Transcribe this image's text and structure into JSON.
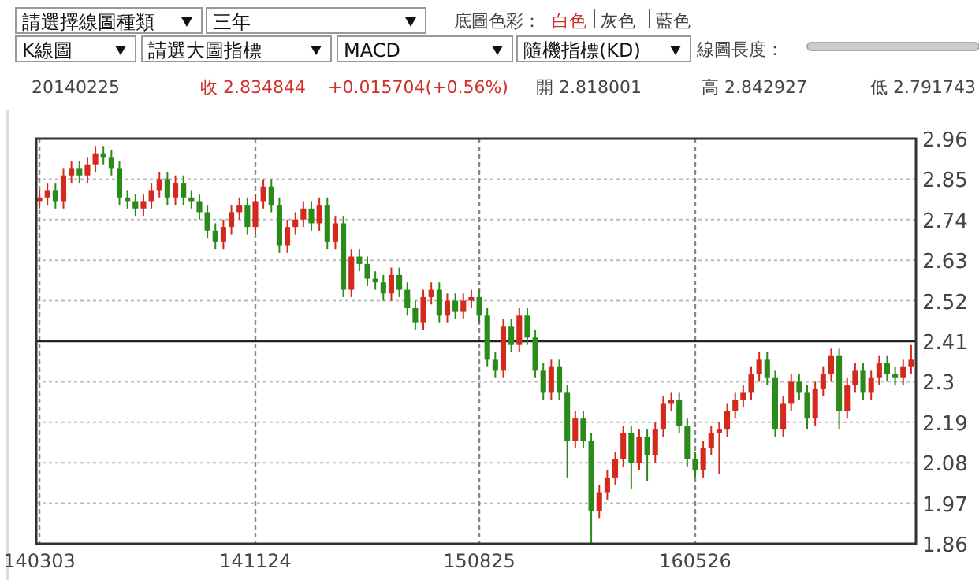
{
  "chart_data": {
    "type": "candlestick",
    "annotations": [
      "請選擇線圖種類",
      "三年",
      "底圖色彩：",
      "白色",
      "灰色",
      "藍色",
      "K線圖",
      "請選大圖指標",
      "MACD",
      "隨機指標(KD)",
      "線圖長度：",
      "20140225",
      "收 2.834844",
      "+0.015704(+0.56%)",
      "開 2.818001",
      "高 2.842927",
      "低 2.791743"
    ],
    "categories": [
      "140303",
      null,
      null,
      null,
      null,
      null,
      null,
      null,
      null,
      null,
      null,
      null,
      null,
      null,
      null,
      null,
      null,
      null,
      null,
      null,
      null,
      null,
      null,
      null,
      null,
      null,
      null,
      "141124",
      null,
      null,
      null,
      null,
      null,
      null,
      null,
      null,
      null,
      null,
      null,
      null,
      null,
      null,
      null,
      null,
      null,
      null,
      null,
      null,
      null,
      null,
      null,
      null,
      null,
      null,
      null,
      "150825",
      null,
      null,
      null,
      null,
      null,
      null,
      null,
      null,
      null,
      null,
      null,
      null,
      null,
      null,
      null,
      null,
      null,
      null,
      null,
      null,
      null,
      null,
      null,
      null,
      null,
      null,
      "160526",
      null,
      null,
      null,
      null,
      null,
      null,
      null,
      null,
      null,
      null,
      null,
      null,
      null,
      null,
      null,
      null,
      null,
      null,
      null,
      null,
      null,
      null,
      null,
      null,
      null,
      null,
      null
    ],
    "ohlc": [
      [
        2.79,
        2.82,
        2.77,
        2.8
      ],
      [
        2.8,
        2.84,
        2.78,
        2.82
      ],
      [
        2.82,
        2.84,
        2.77,
        2.79
      ],
      [
        2.79,
        2.88,
        2.77,
        2.86
      ],
      [
        2.86,
        2.9,
        2.84,
        2.88
      ],
      [
        2.88,
        2.9,
        2.84,
        2.86
      ],
      [
        2.86,
        2.91,
        2.84,
        2.89
      ],
      [
        2.89,
        2.94,
        2.87,
        2.92
      ],
      [
        2.92,
        2.94,
        2.89,
        2.91
      ],
      [
        2.91,
        2.93,
        2.86,
        2.88
      ],
      [
        2.88,
        2.9,
        2.78,
        2.8
      ],
      [
        2.8,
        2.82,
        2.77,
        2.79
      ],
      [
        2.79,
        2.81,
        2.75,
        2.77
      ],
      [
        2.77,
        2.81,
        2.75,
        2.79
      ],
      [
        2.79,
        2.84,
        2.77,
        2.82
      ],
      [
        2.82,
        2.87,
        2.8,
        2.85
      ],
      [
        2.85,
        2.87,
        2.78,
        2.8
      ],
      [
        2.8,
        2.86,
        2.78,
        2.84
      ],
      [
        2.84,
        2.86,
        2.78,
        2.8
      ],
      [
        2.8,
        2.82,
        2.77,
        2.79
      ],
      [
        2.79,
        2.81,
        2.74,
        2.76
      ],
      [
        2.76,
        2.78,
        2.69,
        2.71
      ],
      [
        2.71,
        2.73,
        2.66,
        2.68
      ],
      [
        2.68,
        2.74,
        2.66,
        2.72
      ],
      [
        2.72,
        2.78,
        2.7,
        2.76
      ],
      [
        2.76,
        2.8,
        2.74,
        2.78
      ],
      [
        2.78,
        2.8,
        2.7,
        2.72
      ],
      [
        2.72,
        2.81,
        2.7,
        2.79
      ],
      [
        2.79,
        2.85,
        2.77,
        2.83
      ],
      [
        2.83,
        2.85,
        2.76,
        2.78
      ],
      [
        2.78,
        2.8,
        2.65,
        2.67
      ],
      [
        2.67,
        2.74,
        2.65,
        2.72
      ],
      [
        2.72,
        2.76,
        2.7,
        2.74
      ],
      [
        2.74,
        2.79,
        2.72,
        2.77
      ],
      [
        2.77,
        2.79,
        2.71,
        2.73
      ],
      [
        2.73,
        2.8,
        2.71,
        2.78
      ],
      [
        2.78,
        2.8,
        2.66,
        2.68
      ],
      [
        2.68,
        2.75,
        2.66,
        2.73
      ],
      [
        2.73,
        2.75,
        2.53,
        2.55
      ],
      [
        2.55,
        2.66,
        2.53,
        2.64
      ],
      [
        2.64,
        2.66,
        2.6,
        2.62
      ],
      [
        2.62,
        2.64,
        2.56,
        2.58
      ],
      [
        2.58,
        2.6,
        2.55,
        2.57
      ],
      [
        2.57,
        2.59,
        2.52,
        2.54
      ],
      [
        2.54,
        2.61,
        2.52,
        2.59
      ],
      [
        2.59,
        2.61,
        2.53,
        2.55
      ],
      [
        2.55,
        2.57,
        2.48,
        2.5
      ],
      [
        2.5,
        2.52,
        2.44,
        2.46
      ],
      [
        2.46,
        2.55,
        2.44,
        2.53
      ],
      [
        2.53,
        2.57,
        2.51,
        2.55
      ],
      [
        2.55,
        2.57,
        2.46,
        2.48
      ],
      [
        2.48,
        2.54,
        2.46,
        2.52
      ],
      [
        2.52,
        2.54,
        2.47,
        2.49
      ],
      [
        2.49,
        2.54,
        2.47,
        2.52
      ],
      [
        2.52,
        2.55,
        2.5,
        2.53
      ],
      [
        2.53,
        2.55,
        2.46,
        2.48
      ],
      [
        2.48,
        2.5,
        2.34,
        2.36
      ],
      [
        2.36,
        2.38,
        2.31,
        2.33
      ],
      [
        2.33,
        2.47,
        2.31,
        2.45
      ],
      [
        2.45,
        2.47,
        2.38,
        2.4
      ],
      [
        2.4,
        2.5,
        2.38,
        2.48
      ],
      [
        2.48,
        2.5,
        2.4,
        2.42
      ],
      [
        2.42,
        2.44,
        2.31,
        2.33
      ],
      [
        2.33,
        2.35,
        2.25,
        2.27
      ],
      [
        2.27,
        2.36,
        2.25,
        2.34
      ],
      [
        2.34,
        2.36,
        2.25,
        2.27
      ],
      [
        2.27,
        2.29,
        2.04,
        2.14
      ],
      [
        2.14,
        2.22,
        2.12,
        2.2
      ],
      [
        2.2,
        2.22,
        2.12,
        2.14
      ],
      [
        2.14,
        2.16,
        1.86,
        1.95
      ],
      [
        1.95,
        2.02,
        1.93,
        2.0
      ],
      [
        2.0,
        2.06,
        1.98,
        2.04
      ],
      [
        2.04,
        2.11,
        2.02,
        2.09
      ],
      [
        2.09,
        2.18,
        2.07,
        2.16
      ],
      [
        2.16,
        2.18,
        2.01,
        2.08
      ],
      [
        2.08,
        2.17,
        2.06,
        2.15
      ],
      [
        2.15,
        2.17,
        2.03,
        2.1
      ],
      [
        2.1,
        2.19,
        2.08,
        2.17
      ],
      [
        2.17,
        2.26,
        2.15,
        2.24
      ],
      [
        2.24,
        2.27,
        2.22,
        2.25
      ],
      [
        2.25,
        2.27,
        2.16,
        2.18
      ],
      [
        2.18,
        2.2,
        2.07,
        2.09
      ],
      [
        2.09,
        2.11,
        2.04,
        2.06
      ],
      [
        2.06,
        2.14,
        2.04,
        2.12
      ],
      [
        2.12,
        2.18,
        2.1,
        2.16
      ],
      [
        2.16,
        2.19,
        2.05,
        2.17
      ],
      [
        2.17,
        2.24,
        2.15,
        2.22
      ],
      [
        2.22,
        2.27,
        2.2,
        2.25
      ],
      [
        2.25,
        2.29,
        2.23,
        2.27
      ],
      [
        2.27,
        2.34,
        2.25,
        2.32
      ],
      [
        2.32,
        2.38,
        2.3,
        2.36
      ],
      [
        2.36,
        2.38,
        2.29,
        2.31
      ],
      [
        2.31,
        2.33,
        2.15,
        2.17
      ],
      [
        2.17,
        2.26,
        2.15,
        2.24
      ],
      [
        2.24,
        2.32,
        2.22,
        2.3
      ],
      [
        2.3,
        2.32,
        2.25,
        2.27
      ],
      [
        2.27,
        2.29,
        2.17,
        2.2
      ],
      [
        2.2,
        2.3,
        2.18,
        2.28
      ],
      [
        2.28,
        2.34,
        2.26,
        2.32
      ],
      [
        2.32,
        2.39,
        2.3,
        2.37
      ],
      [
        2.37,
        2.39,
        2.17,
        2.22
      ],
      [
        2.22,
        2.31,
        2.2,
        2.29
      ],
      [
        2.29,
        2.35,
        2.27,
        2.33
      ],
      [
        2.33,
        2.35,
        2.25,
        2.27
      ],
      [
        2.27,
        2.33,
        2.25,
        2.31
      ],
      [
        2.31,
        2.37,
        2.29,
        2.35
      ],
      [
        2.35,
        2.37,
        2.3,
        2.32
      ],
      [
        2.32,
        2.34,
        2.29,
        2.31
      ],
      [
        2.31,
        2.36,
        2.29,
        2.34
      ],
      [
        2.34,
        2.4,
        2.32,
        2.36
      ]
    ],
    "colors": [
      "#d42a1e",
      "#d42a1e",
      "#2a8a1a",
      "#d42a1e",
      "#d42a1e",
      "#2a8a1a",
      "#d42a1e",
      "#d42a1e",
      "#2a8a1a",
      "#2a8a1a",
      "#2a8a1a",
      "#2a8a1a",
      "#2a8a1a",
      "#d42a1e",
      "#d42a1e",
      "#d42a1e",
      "#2a8a1a",
      "#d42a1e",
      "#2a8a1a",
      "#2a8a1a",
      "#2a8a1a",
      "#2a8a1a",
      "#2a8a1a",
      "#d42a1e",
      "#d42a1e",
      "#d42a1e",
      "#2a8a1a",
      "#d42a1e",
      "#d42a1e",
      "#2a8a1a",
      "#2a8a1a",
      "#d42a1e",
      "#d42a1e",
      "#d42a1e",
      "#2a8a1a",
      "#d42a1e",
      "#2a8a1a",
      "#d42a1e",
      "#2a8a1a",
      "#d42a1e",
      "#2a8a1a",
      "#2a8a1a",
      "#2a8a1a",
      "#2a8a1a",
      "#d42a1e",
      "#2a8a1a",
      "#2a8a1a",
      "#2a8a1a",
      "#d42a1e",
      "#d42a1e",
      "#2a8a1a",
      "#d42a1e",
      "#2a8a1a",
      "#d42a1e",
      "#d42a1e",
      "#2a8a1a",
      "#2a8a1a",
      "#2a8a1a",
      "#d42a1e",
      "#2a8a1a",
      "#d42a1e",
      "#2a8a1a",
      "#2a8a1a",
      "#2a8a1a",
      "#d42a1e",
      "#2a8a1a",
      "#2a8a1a",
      "#d42a1e",
      "#2a8a1a",
      "#2a8a1a",
      "#d42a1e",
      "#d42a1e",
      "#d42a1e",
      "#d42a1e",
      "#2a8a1a",
      "#d42a1e",
      "#2a8a1a",
      "#d42a1e",
      "#d42a1e",
      "#d42a1e",
      "#2a8a1a",
      "#2a8a1a",
      "#2a8a1a",
      "#d42a1e",
      "#d42a1e",
      "#d42a1e",
      "#d42a1e",
      "#d42a1e",
      "#d42a1e",
      "#d42a1e",
      "#d42a1e",
      "#2a8a1a",
      "#2a8a1a",
      "#d42a1e",
      "#d42a1e",
      "#2a8a1a",
      "#2a8a1a",
      "#d42a1e",
      "#d42a1e",
      "#d42a1e",
      "#2a8a1a",
      "#d42a1e",
      "#d42a1e",
      "#2a8a1a",
      "#d42a1e",
      "#d42a1e",
      "#2a8a1a",
      "#2a8a1a",
      "#d42a1e",
      "#d42a1e"
    ],
    "ylim": [
      1.86,
      2.96
    ],
    "yticks": [
      1.86,
      1.97,
      2.08,
      2.19,
      2.3,
      {
        "value": 2.41,
        "label": "2.41"
      },
      {
        "value": 2.52,
        "label": "2.52"
      },
      2.63,
      2.74,
      2.85,
      2.96
    ],
    "ref_lines": [
      {
        "axis": "y",
        "value": 2.41,
        "color": "#222222"
      }
    ],
    "grid": true
  }
}
